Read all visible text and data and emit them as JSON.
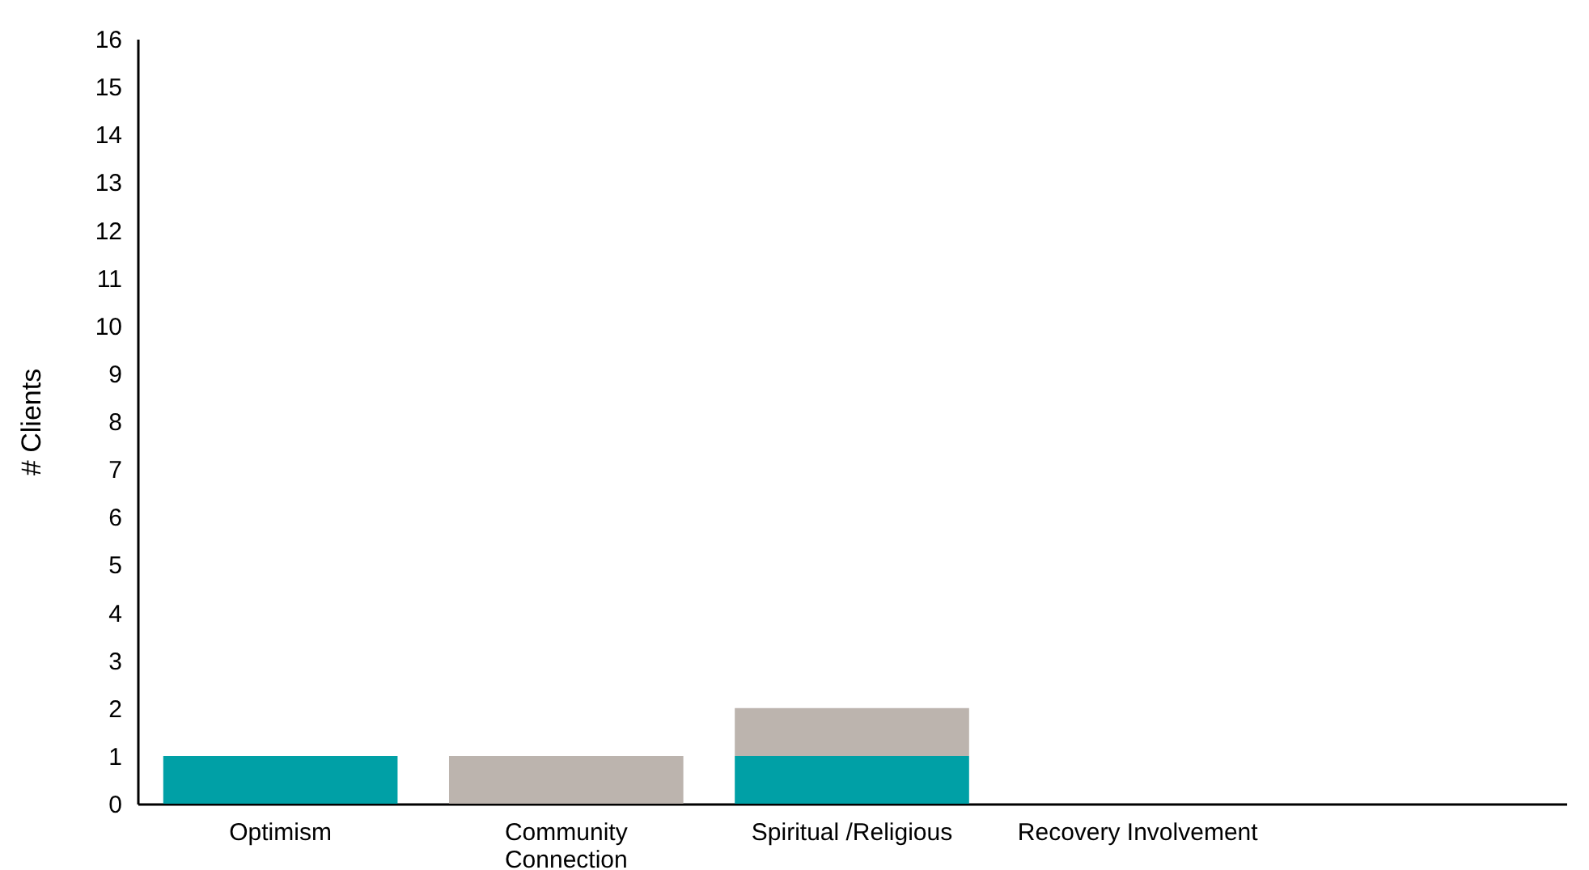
{
  "chart_data": {
    "type": "bar",
    "ylabel": "# Clients",
    "stacked": true,
    "categories": [
      "Optimism",
      "Community Connection",
      "Spiritual /Religious",
      "Recovery Involvement",
      null
    ],
    "series": [
      {
        "color": "#00a0a6",
        "values": [
          1,
          0,
          1,
          0,
          0
        ]
      },
      {
        "color": "#bcb4ae",
        "values": [
          0,
          1,
          1,
          0,
          0
        ]
      }
    ],
    "ylim": [
      0,
      16
    ],
    "yticks": [
      0,
      1,
      2,
      3,
      4,
      5,
      6,
      7,
      8,
      9,
      10,
      11,
      12,
      13,
      14,
      15,
      16
    ],
    "grid": false,
    "legend": false
  }
}
